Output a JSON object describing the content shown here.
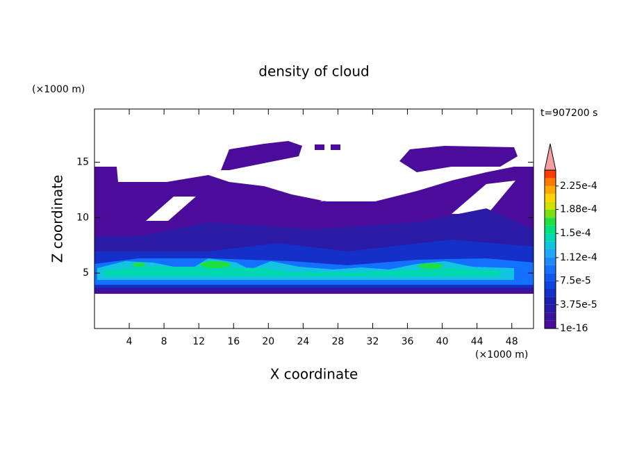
{
  "chart_data": {
    "type": "contour",
    "title": "density of cloud",
    "xlabel": "X coordinate",
    "ylabel": "Z coordinate",
    "xunit": "(×1000 m)",
    "yunit": "(×1000 m)",
    "annotation": "t=907200 s",
    "xlim": [
      0,
      50.5
    ],
    "ylim": [
      0,
      19.8
    ],
    "xticks": [
      4,
      8,
      12,
      16,
      20,
      24,
      28,
      32,
      36,
      40,
      44,
      48
    ],
    "yticks": [
      5,
      10,
      15
    ],
    "colorbar": {
      "lim": [
        1e-16,
        0.00025
      ],
      "ticks": [
        {
          "value": 1e-16,
          "label": "1e-16"
        },
        {
          "value": 3.75e-05,
          "label": "3.75e-5"
        },
        {
          "value": 7.5e-05,
          "label": "7.5e-5"
        },
        {
          "value": 0.000112,
          "label": "1.12e-4"
        },
        {
          "value": 0.00015,
          "label": "1.5e-4"
        },
        {
          "value": 0.000188,
          "label": "1.88e-4"
        },
        {
          "value": 0.000225,
          "label": "2.25e-4"
        }
      ],
      "colors": [
        "#4b0c9c",
        "#3a129e",
        "#2a1aa6",
        "#1c20b0",
        "#1430c8",
        "#1044dc",
        "#1258ee",
        "#1470ff",
        "#1e8cff",
        "#20a8ff",
        "#12c4e0",
        "#00d8b0",
        "#00e07c",
        "#20e040",
        "#7ce010",
        "#d0e000",
        "#ffd400",
        "#ffa800",
        "#ff7800",
        "#ff3c00"
      ],
      "extend_color": "#f4a0a0"
    }
  }
}
